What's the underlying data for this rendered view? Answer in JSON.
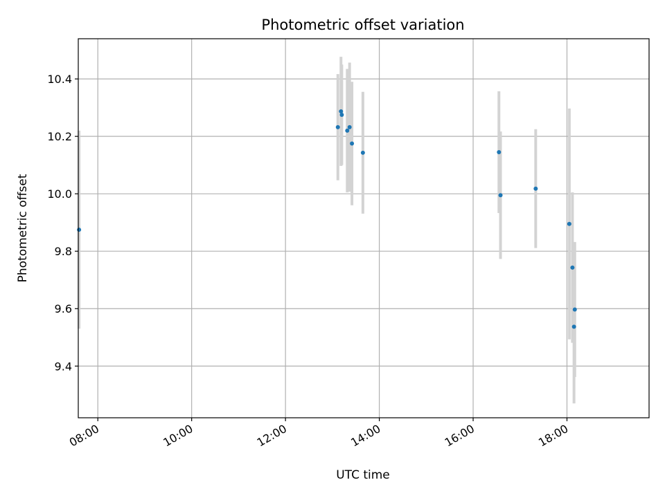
{
  "chart_data": {
    "type": "scatter",
    "title": "Photometric offset variation",
    "xlabel": "UTC time",
    "ylabel": "Photometric offset",
    "x_unit": "hours (UTC)",
    "xlim": [
      "07:35",
      "19:45"
    ],
    "ylim": [
      9.22,
      10.54
    ],
    "xticks": [
      "08:00",
      "10:00",
      "12:00",
      "14:00",
      "16:00",
      "18:00"
    ],
    "yticks": [
      9.4,
      9.6,
      9.8,
      10.0,
      10.2,
      10.4
    ],
    "grid": true,
    "marker_color": "#1f77b4",
    "errorbar_color": "#d3d3d3",
    "points": [
      {
        "time": "07:36",
        "y": 9.875,
        "err": 0.345
      },
      {
        "time": "13:07",
        "y": 10.232,
        "err": 0.185
      },
      {
        "time": "13:11",
        "y": 10.287,
        "err": 0.19
      },
      {
        "time": "13:12",
        "y": 10.275,
        "err": 0.175
      },
      {
        "time": "13:19",
        "y": 10.22,
        "err": 0.215
      },
      {
        "time": "13:22",
        "y": 10.232,
        "err": 0.225
      },
      {
        "time": "13:25",
        "y": 10.175,
        "err": 0.215
      },
      {
        "time": "13:39",
        "y": 10.143,
        "err": 0.212
      },
      {
        "time": "16:33",
        "y": 10.145,
        "err": 0.212
      },
      {
        "time": "16:35",
        "y": 9.995,
        "err": 0.222
      },
      {
        "time": "17:20",
        "y": 10.018,
        "err": 0.207
      },
      {
        "time": "18:03",
        "y": 9.895,
        "err": 0.402
      },
      {
        "time": "18:07",
        "y": 9.743,
        "err": 0.262
      },
      {
        "time": "18:10",
        "y": 9.597,
        "err": 0.235
      },
      {
        "time": "18:09",
        "y": 9.537,
        "err": 0.267
      }
    ]
  }
}
